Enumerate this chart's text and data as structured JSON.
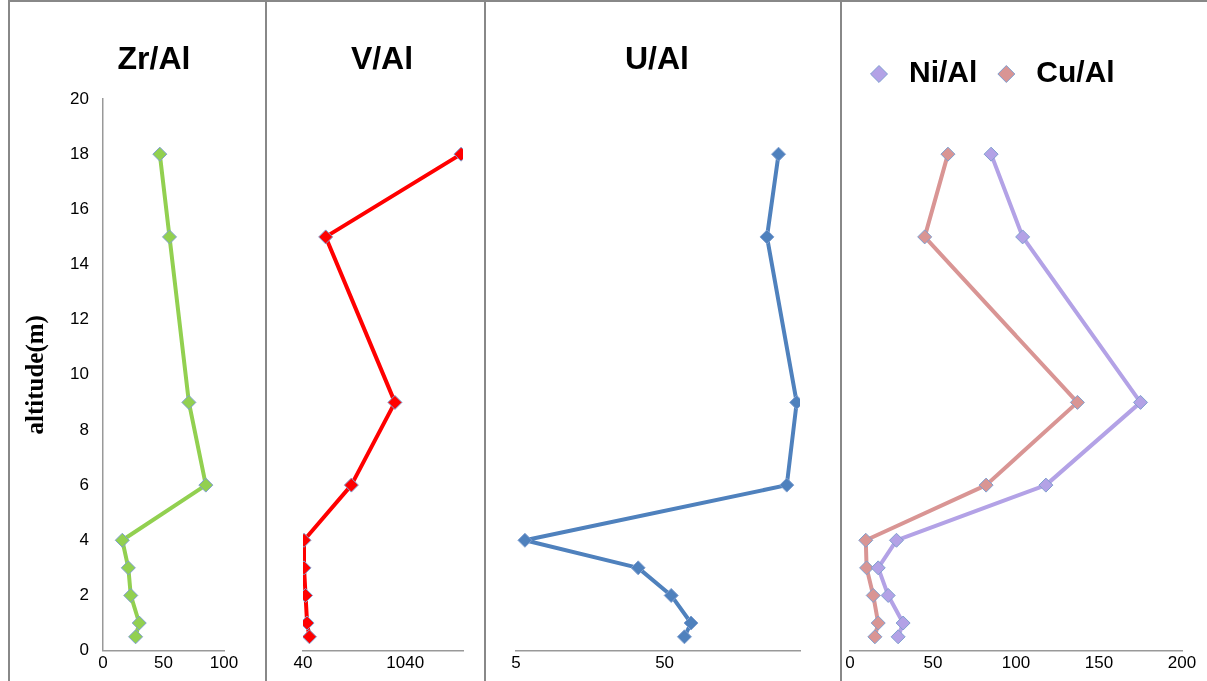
{
  "chart_data": [
    {
      "type": "line",
      "title": "Zr/Al",
      "ylabel": "altitude(m)",
      "xlim": [
        0,
        100
      ],
      "xticks": [
        0,
        50,
        100
      ],
      "ylim": [
        0,
        20
      ],
      "yticks": [
        0,
        2,
        4,
        6,
        8,
        10,
        12,
        14,
        16,
        18,
        20
      ],
      "marker": "diamond",
      "series": [
        {
          "color": "#92d050",
          "x": [
            27,
            30,
            23,
            21,
            16,
            85,
            71,
            55,
            47
          ],
          "values": [
            0.5,
            1,
            2,
            3,
            4,
            6,
            9,
            15,
            18
          ]
        }
      ]
    },
    {
      "type": "line",
      "title": "V/Al",
      "xlim": [
        40,
        1605
      ],
      "xticks": [
        40,
        1040
      ],
      "ylim": [
        0,
        20
      ],
      "tick_labels": "x",
      "marker": "diamond",
      "series": [
        {
          "color": "#ff0000",
          "x": [
            103,
            80,
            65,
            50,
            50,
            513,
            939,
            262,
            1586
          ],
          "values": [
            0.5,
            1,
            2,
            3,
            4,
            6,
            9,
            15,
            18
          ]
        }
      ]
    },
    {
      "type": "line",
      "title": "U/Al",
      "xlim": [
        5,
        91
      ],
      "xticks": [
        5,
        50
      ],
      "ylim": [
        0,
        20
      ],
      "tick_labels": "x",
      "marker": "diamond",
      "series": [
        {
          "color": "#4f81bd",
          "x": [
            56,
            58,
            52,
            42,
            7.7,
            87,
            90,
            81,
            84.5
          ],
          "values": [
            0.5,
            1,
            2,
            3,
            4,
            6,
            9,
            15,
            18
          ]
        }
      ]
    },
    {
      "type": "line",
      "xlim": [
        0,
        200
      ],
      "xticks": [
        0,
        50,
        100,
        150,
        200
      ],
      "ylim": [
        0,
        20
      ],
      "tick_labels": "x",
      "marker": "diamond",
      "legend": "top",
      "series": [
        {
          "name": "Ni/Al",
          "color": "#b3a2e6",
          "x": [
            29,
            32,
            23,
            17,
            28,
            118,
            175,
            104,
            85
          ],
          "values": [
            0.5,
            1,
            2,
            3,
            4,
            6,
            9,
            15,
            18
          ]
        },
        {
          "name": "Cu/Al",
          "color": "#d99594",
          "x": [
            15,
            17,
            14,
            10,
            9.5,
            82,
            137,
            45,
            59
          ],
          "values": [
            0.5,
            1,
            2,
            3,
            4,
            6,
            9,
            15,
            18
          ]
        }
      ]
    }
  ]
}
